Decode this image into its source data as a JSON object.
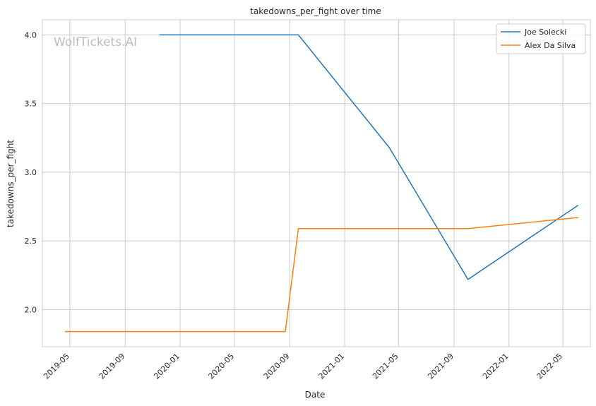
{
  "chart_data": {
    "type": "line",
    "title": "takedowns_per_fight over time",
    "xlabel": "Date",
    "ylabel": "takedowns_per_fight",
    "watermark": "WolfTickets.AI",
    "grid": true,
    "legend_position": "top-right",
    "x_axis": "date",
    "xlim": [
      "2019-03-01",
      "2022-07-01"
    ],
    "ylim": [
      1.73,
      4.11
    ],
    "y_ticks": [
      2.0,
      2.5,
      3.0,
      3.5,
      4.0
    ],
    "y_tick_labels": [
      "2.0",
      "2.5",
      "3.0",
      "3.5",
      "4.0"
    ],
    "x_ticks": [
      "2019-05-01",
      "2019-09-01",
      "2020-01-01",
      "2020-05-01",
      "2020-09-01",
      "2021-01-01",
      "2021-05-01",
      "2021-09-01",
      "2022-01-01",
      "2022-05-01"
    ],
    "x_tick_labels": [
      "2019-05",
      "2019-09",
      "2020-01",
      "2020-05",
      "2020-09",
      "2021-01",
      "2021-05",
      "2021-09",
      "2022-01",
      "2022-05"
    ],
    "series": [
      {
        "name": "Joe Solecki",
        "color": "#1f77b4",
        "x": [
          "2019-11-16",
          "2020-09-20",
          "2021-04-10",
          "2021-10-02",
          "2022-06-04"
        ],
        "y": [
          4.0,
          4.0,
          3.18,
          2.22,
          2.76
        ]
      },
      {
        "name": "Alex Da Silva",
        "color": "#ff7f0e",
        "x": [
          "2019-04-20",
          "2020-08-22",
          "2020-09-20",
          "2021-10-02",
          "2022-06-04"
        ],
        "y": [
          1.84,
          1.84,
          2.59,
          2.59,
          2.67
        ]
      }
    ]
  }
}
